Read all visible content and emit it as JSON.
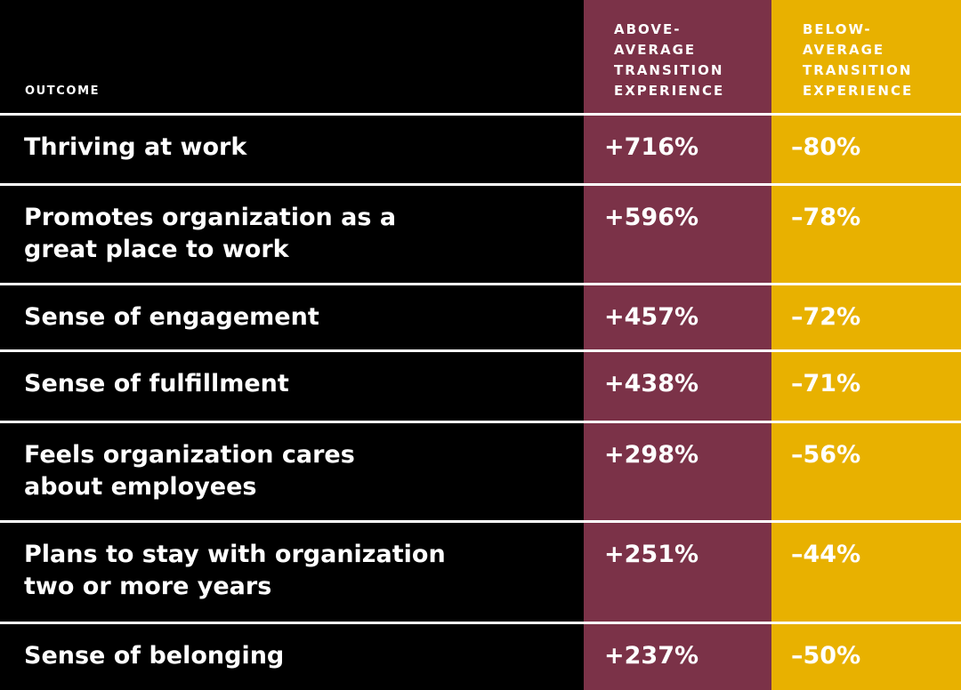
{
  "colors": {
    "background": "#000000",
    "above_column": "#7b3248",
    "below_column": "#e8b100",
    "text": "#ffffff",
    "divider": "#ffffff"
  },
  "header": {
    "outcome": "OUTCOME",
    "above": "ABOVE-\nAVERAGE\nTRANSITION\nEXPERIENCE",
    "below": "BELOW-\nAVERAGE\nTRANSITION\nEXPERIENCE"
  },
  "chart_data": {
    "type": "table",
    "columns": [
      "OUTCOME",
      "ABOVE-AVERAGE TRANSITION EXPERIENCE",
      "BELOW-AVERAGE TRANSITION EXPERIENCE"
    ],
    "rows": [
      {
        "outcome": "Thriving at work",
        "above": "+716%",
        "below": "–80%"
      },
      {
        "outcome": "Promotes organization as a\ngreat place to work",
        "above": "+596%",
        "below": "–78%"
      },
      {
        "outcome": "Sense of engagement",
        "above": "+457%",
        "below": "–72%"
      },
      {
        "outcome": "Sense of fulfillment",
        "above": "+438%",
        "below": "–71%"
      },
      {
        "outcome": "Feels organization cares\nabout employees",
        "above": "+298%",
        "below": "–56%"
      },
      {
        "outcome": "Plans to stay with organization\ntwo or more years",
        "above": "+251%",
        "below": "–44%"
      },
      {
        "outcome": "Sense of belonging",
        "above": "+237%",
        "below": "–50%"
      }
    ]
  }
}
